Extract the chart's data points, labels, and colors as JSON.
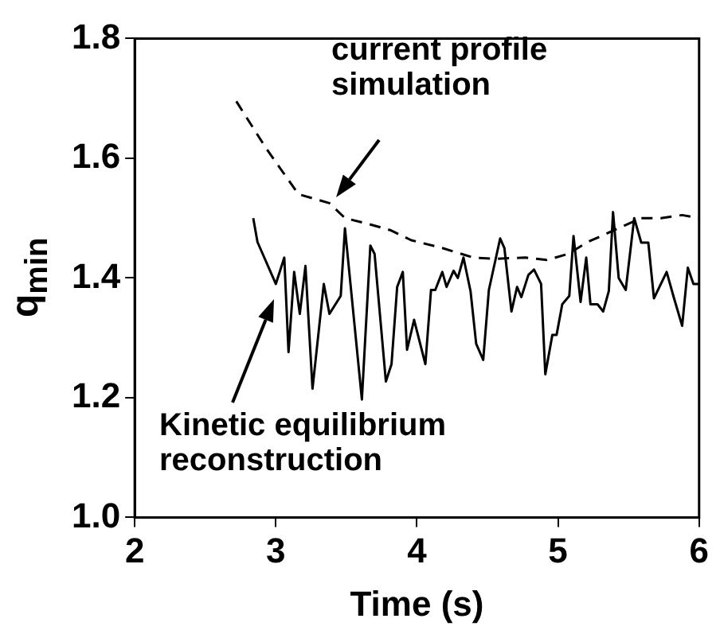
{
  "chart_data": {
    "type": "line",
    "xlabel": "Time (s)",
    "ylabel": "q$_{min}$",
    "xlim": [
      2,
      6
    ],
    "xticks": [
      2,
      3,
      4,
      5,
      6
    ],
    "ylim": [
      1.0,
      1.8
    ],
    "yticks": [
      {
        "value": 1.0,
        "label": "1.0"
      },
      1.2,
      1.4,
      1.6,
      1.8
    ],
    "grid": false,
    "legend": false,
    "marker": "none",
    "annotations": [
      "current profile simulation",
      "Kinetic equilibrium reconstruction"
    ],
    "series": [
      {
        "color": "#000000",
        "line_style": "dashed",
        "x": [
          2.72,
          2.93,
          3.16,
          3.38,
          3.49,
          3.66,
          3.81,
          3.96,
          4.18,
          4.4,
          4.55,
          4.77,
          4.92,
          5.07,
          5.21,
          5.4,
          5.59,
          5.73,
          5.88,
          6.0
        ],
        "values": [
          1.695,
          1.617,
          1.54,
          1.525,
          1.5,
          1.49,
          1.48,
          1.463,
          1.45,
          1.434,
          1.432,
          1.434,
          1.43,
          1.44,
          1.46,
          1.48,
          1.5,
          1.5,
          1.505,
          1.5
        ]
      },
      {
        "color": "#000000",
        "line_style": "solid",
        "x": [
          2.84,
          2.87,
          3.0,
          3.06,
          3.09,
          3.13,
          3.17,
          3.21,
          3.26,
          3.34,
          3.38,
          3.46,
          3.49,
          3.61,
          3.67,
          3.7,
          3.78,
          3.82,
          3.86,
          3.9,
          3.93,
          3.98,
          4.06,
          4.1,
          4.13,
          4.18,
          4.21,
          4.26,
          4.29,
          4.33,
          4.38,
          4.42,
          4.47,
          4.51,
          4.59,
          4.62,
          4.67,
          4.71,
          4.74,
          4.79,
          4.83,
          4.88,
          4.91,
          4.96,
          4.99,
          5.03,
          5.08,
          5.11,
          5.16,
          5.2,
          5.23,
          5.28,
          5.32,
          5.36,
          5.39,
          5.43,
          5.48,
          5.54,
          5.59,
          5.64,
          5.68,
          5.77,
          5.82,
          5.88,
          5.92,
          5.96,
          6.0
        ],
        "values": [
          1.5,
          1.46,
          1.39,
          1.434,
          1.276,
          1.41,
          1.34,
          1.42,
          1.215,
          1.39,
          1.34,
          1.37,
          1.483,
          1.197,
          1.454,
          1.44,
          1.227,
          1.256,
          1.385,
          1.41,
          1.28,
          1.33,
          1.256,
          1.38,
          1.38,
          1.41,
          1.385,
          1.412,
          1.4,
          1.434,
          1.378,
          1.29,
          1.263,
          1.38,
          1.466,
          1.45,
          1.344,
          1.385,
          1.368,
          1.405,
          1.414,
          1.39,
          1.239,
          1.305,
          1.305,
          1.356,
          1.37,
          1.47,
          1.36,
          1.434,
          1.356,
          1.356,
          1.344,
          1.378,
          1.51,
          1.4,
          1.38,
          1.5,
          1.459,
          1.459,
          1.366,
          1.41,
          1.368,
          1.32,
          1.417,
          1.39,
          1.39
        ]
      }
    ]
  }
}
